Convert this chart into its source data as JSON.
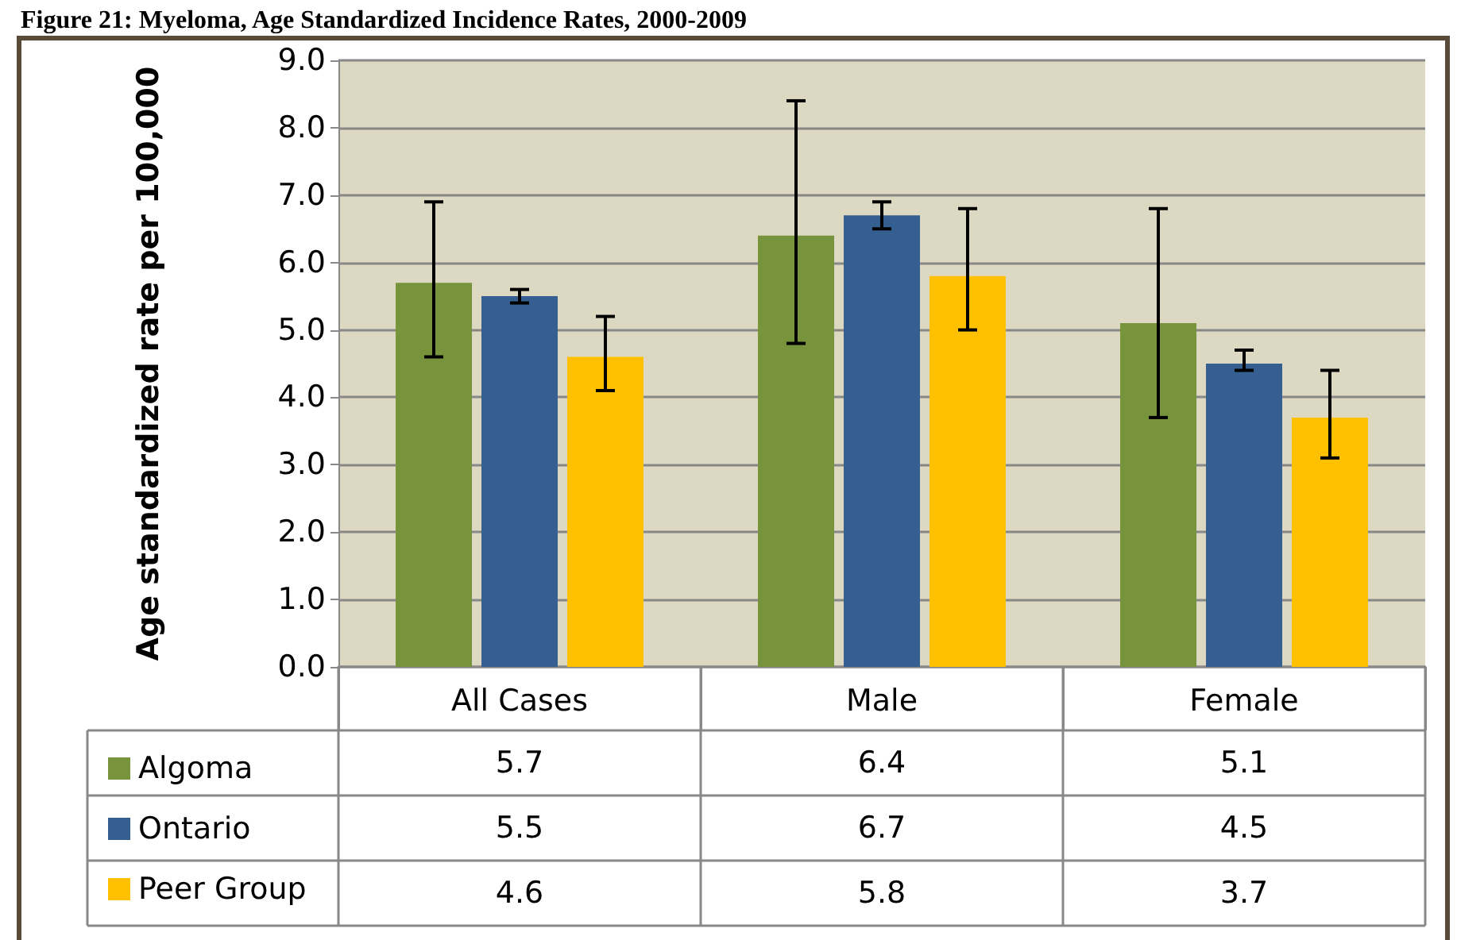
{
  "chart_data": {
    "type": "bar",
    "title": "Figure 21: Myeloma, Age Standardized Incidence Rates, 2000-2009",
    "ylabel": "Age standardized rate per 100,000",
    "categories": [
      "All Cases",
      "Male",
      "Female"
    ],
    "series": [
      {
        "name": "Algoma",
        "color": "#77933c",
        "values": [
          5.7,
          6.4,
          5.1
        ],
        "errors": [
          [
            4.6,
            6.9
          ],
          [
            4.8,
            8.4
          ],
          [
            3.7,
            6.8
          ]
        ]
      },
      {
        "name": "Ontario",
        "color": "#365f91",
        "values": [
          5.5,
          6.7,
          4.5
        ],
        "errors": [
          [
            5.4,
            5.6
          ],
          [
            6.5,
            6.9
          ],
          [
            4.4,
            4.7
          ]
        ]
      },
      {
        "name": "Peer Group",
        "color": "#ffc000",
        "values": [
          4.6,
          5.8,
          3.7
        ],
        "errors": [
          [
            4.1,
            5.2
          ],
          [
            5.0,
            6.8
          ],
          [
            3.1,
            4.4
          ]
        ]
      }
    ],
    "ylim": [
      0,
      9
    ],
    "yticks": [
      {
        "value": 0,
        "label": "0.0"
      },
      {
        "value": 1,
        "label": "1.0"
      },
      {
        "value": 2,
        "label": "2.0"
      },
      {
        "value": 3,
        "label": "3.0"
      },
      {
        "value": 4,
        "label": "4.0"
      },
      {
        "value": 5,
        "label": "5.0"
      },
      {
        "value": 6,
        "label": "6.0"
      },
      {
        "value": 7,
        "label": "7.0"
      },
      {
        "value": 8,
        "label": "8.0"
      },
      {
        "value": 9,
        "label": "9.0"
      }
    ],
    "grid": true,
    "legend": "bottom left",
    "data_labels": true
  }
}
